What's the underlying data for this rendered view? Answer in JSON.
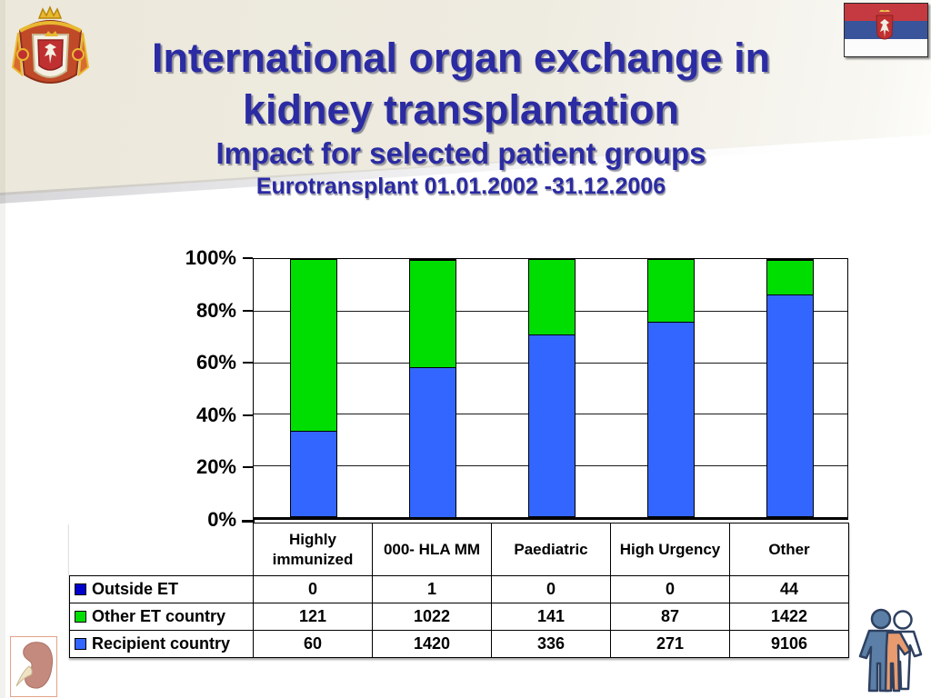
{
  "slide": {
    "title_line1": "International organ exchange in",
    "title_line2": "kidney transplantation",
    "subtitle": "Impact for selected patient groups",
    "date_range": "Eurotransplant 01.01.2002 -31.12.2006",
    "title_color": "#2B2BA3",
    "background_top_color": "#ECE8DB"
  },
  "icons": {
    "top_left": "serbia-coat-of-arms",
    "top_right": "serbia-flag",
    "bottom_left": "kidney-illustration",
    "bottom_right": "people-group"
  },
  "chart_data": {
    "type": "bar",
    "subtype": "100-percent-stacked-column",
    "categories": [
      "Highly immunized",
      "000- HLA MM",
      "Paediatric",
      "High Urgency",
      "Other"
    ],
    "series": [
      {
        "name": "Outside ET",
        "color": "#0000CC",
        "values": [
          0,
          1,
          0,
          0,
          44
        ]
      },
      {
        "name": "Other ET country",
        "color": "#00DD00",
        "values": [
          121,
          1022,
          141,
          87,
          1422
        ]
      },
      {
        "name": "Recipient country",
        "color": "#3366FF",
        "values": [
          60,
          1420,
          336,
          271,
          9106
        ]
      }
    ],
    "stack_order_bottom_to_top": [
      "Recipient country",
      "Other ET country",
      "Outside ET"
    ],
    "yticks": [
      "100%",
      "80%",
      "60%",
      "40%",
      "20%",
      "0%"
    ],
    "ylim": [
      0,
      100
    ],
    "grid": "horizontal-20pct",
    "legend_position": "left-of-data-table"
  }
}
